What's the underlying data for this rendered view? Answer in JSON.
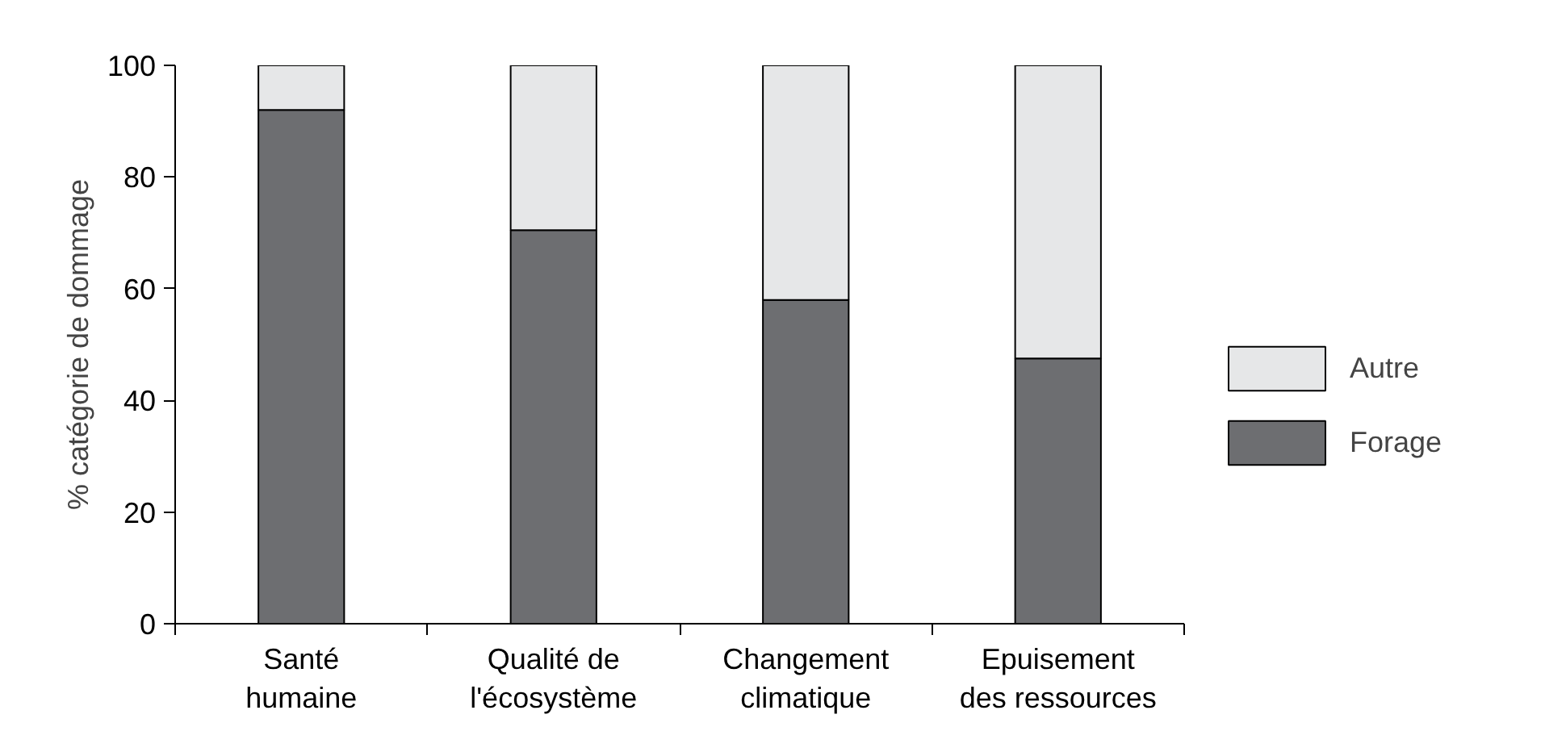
{
  "chart_data": {
    "type": "bar",
    "stacked": true,
    "ylabel": "% catégorie de dommage",
    "categories": [
      "Santé\nhumaine",
      "Qualité de\nl'écosystème",
      "Changement\nclimatique",
      "Epuisement\ndes ressources"
    ],
    "series": [
      {
        "name": "Forage",
        "color": "#6d6e71",
        "values": [
          92,
          70.5,
          58,
          47.5
        ]
      },
      {
        "name": "Autre",
        "color": "#e6e7e8",
        "values": [
          8,
          29.5,
          42,
          52.5
        ]
      }
    ],
    "ylim": [
      0,
      100
    ],
    "yticks": [
      0,
      20,
      40,
      60,
      80,
      100
    ],
    "grid": false,
    "legend": "right"
  }
}
